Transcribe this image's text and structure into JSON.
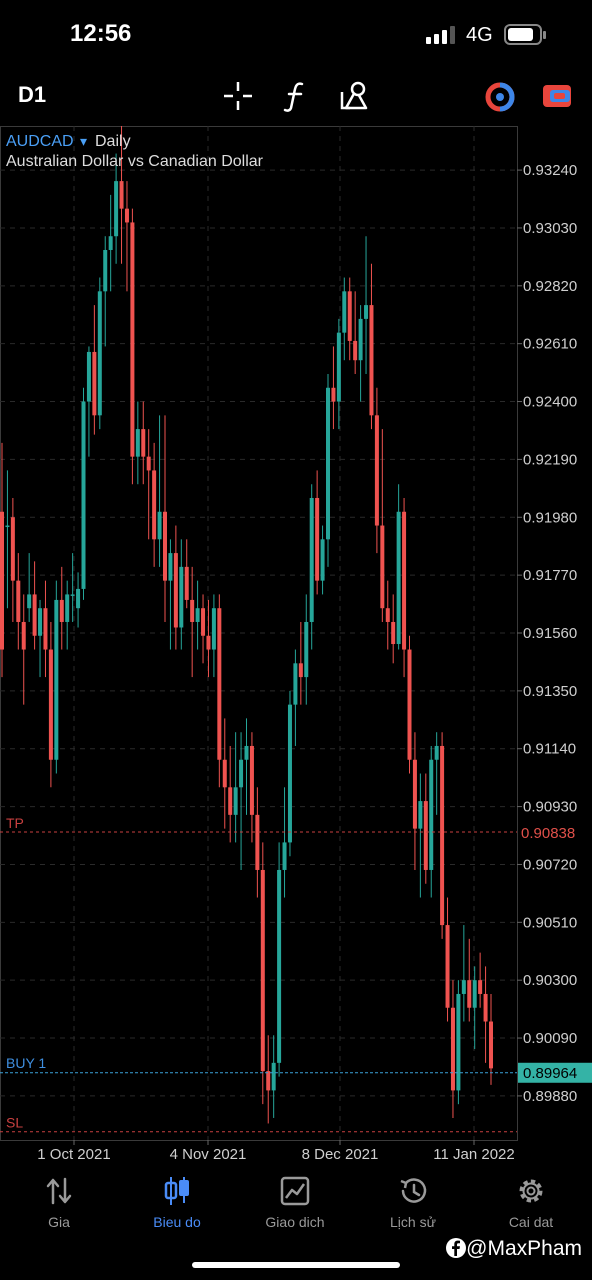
{
  "status_bar": {
    "time": "12:56",
    "network": "4G"
  },
  "toolbar": {
    "timeframe": "D1",
    "icons": [
      "crosshair-icon",
      "function-icon",
      "objects-icon",
      "trade-toggle-icon",
      "window-icon"
    ]
  },
  "chart": {
    "symbol": "AUDCAD",
    "dropdown_glyph": "▾",
    "period": "Daily",
    "description": "Australian Dollar vs Canadian Dollar",
    "price_axis": [
      "0.93240",
      "0.93030",
      "0.92820",
      "0.92610",
      "0.92400",
      "0.92190",
      "0.91980",
      "0.91770",
      "0.91560",
      "0.91350",
      "0.91140",
      "0.90930",
      "0.90720",
      "0.90510",
      "0.90300",
      "0.90090",
      "0.89880"
    ],
    "date_axis": [
      "1 Oct 2021",
      "4 Nov 2021",
      "8 Dec 2021",
      "11 Jan 2022"
    ],
    "tp": {
      "label": "TP",
      "price": "0.90838"
    },
    "buy": {
      "label": "BUY 1",
      "price": "0.89964"
    },
    "sl": {
      "label": "SL"
    },
    "colors": {
      "up": "#26a69a",
      "down": "#ef5350",
      "grid": "#2a2a2a",
      "buy": "#3aa0d8",
      "tp": "#c84040"
    }
  },
  "chart_data": {
    "type": "candlestick",
    "symbol": "AUDCAD",
    "period": "Daily",
    "ylim": [
      0.8972,
      0.934
    ],
    "candles": [
      [
        0.92,
        0.9225,
        0.914,
        0.915
      ],
      [
        0.9195,
        0.9215,
        0.9165,
        0.9195
      ],
      [
        0.9198,
        0.9205,
        0.916,
        0.9175
      ],
      [
        0.9175,
        0.9185,
        0.915,
        0.916
      ],
      [
        0.916,
        0.917,
        0.913,
        0.915
      ],
      [
        0.9165,
        0.9185,
        0.916,
        0.917
      ],
      [
        0.917,
        0.9182,
        0.915,
        0.9155
      ],
      [
        0.9155,
        0.9168,
        0.914,
        0.9165
      ],
      [
        0.9165,
        0.9175,
        0.914,
        0.915
      ],
      [
        0.915,
        0.916,
        0.91,
        0.911
      ],
      [
        0.911,
        0.9175,
        0.9105,
        0.9168
      ],
      [
        0.9168,
        0.918,
        0.915,
        0.916
      ],
      [
        0.916,
        0.9175,
        0.915,
        0.917
      ],
      [
        0.917,
        0.9185,
        0.916,
        0.917
      ],
      [
        0.9165,
        0.9178,
        0.9158,
        0.9172
      ],
      [
        0.9172,
        0.9245,
        0.9168,
        0.924
      ],
      [
        0.924,
        0.926,
        0.922,
        0.9258
      ],
      [
        0.9258,
        0.9275,
        0.9228,
        0.9235
      ],
      [
        0.9235,
        0.9285,
        0.923,
        0.928
      ],
      [
        0.928,
        0.93,
        0.926,
        0.9295
      ],
      [
        0.9295,
        0.9315,
        0.928,
        0.93
      ],
      [
        0.93,
        0.933,
        0.929,
        0.932
      ],
      [
        0.932,
        0.934,
        0.929,
        0.931
      ],
      [
        0.931,
        0.932,
        0.928,
        0.9305
      ],
      [
        0.9305,
        0.931,
        0.921,
        0.922
      ],
      [
        0.922,
        0.924,
        0.921,
        0.923
      ],
      [
        0.923,
        0.924,
        0.921,
        0.922
      ],
      [
        0.922,
        0.923,
        0.919,
        0.9215
      ],
      [
        0.9215,
        0.9225,
        0.918,
        0.919
      ],
      [
        0.919,
        0.9235,
        0.918,
        0.92
      ],
      [
        0.92,
        0.9235,
        0.916,
        0.9175
      ],
      [
        0.9175,
        0.919,
        0.915,
        0.9185
      ],
      [
        0.9185,
        0.9195,
        0.915,
        0.9158
      ],
      [
        0.9158,
        0.919,
        0.915,
        0.918
      ],
      [
        0.918,
        0.919,
        0.9165,
        0.9168
      ],
      [
        0.9168,
        0.918,
        0.914,
        0.916
      ],
      [
        0.916,
        0.9175,
        0.915,
        0.9165
      ],
      [
        0.9165,
        0.917,
        0.9145,
        0.9155
      ],
      [
        0.9155,
        0.9168,
        0.914,
        0.915
      ],
      [
        0.915,
        0.917,
        0.914,
        0.9165
      ],
      [
        0.9165,
        0.917,
        0.91,
        0.911
      ],
      [
        0.911,
        0.9125,
        0.9085,
        0.91
      ],
      [
        0.91,
        0.9115,
        0.908,
        0.909
      ],
      [
        0.909,
        0.912,
        0.908,
        0.91
      ],
      [
        0.91,
        0.912,
        0.907,
        0.911
      ],
      [
        0.911,
        0.9125,
        0.909,
        0.9115
      ],
      [
        0.9115,
        0.912,
        0.908,
        0.909
      ],
      [
        0.909,
        0.91,
        0.906,
        0.907
      ],
      [
        0.907,
        0.908,
        0.8985,
        0.8997
      ],
      [
        0.8997,
        0.901,
        0.8978,
        0.899
      ],
      [
        0.899,
        0.901,
        0.898,
        0.9
      ],
      [
        0.9,
        0.908,
        0.8995,
        0.907
      ],
      [
        0.907,
        0.91,
        0.906,
        0.908
      ],
      [
        0.908,
        0.9135,
        0.9075,
        0.913
      ],
      [
        0.913,
        0.915,
        0.9115,
        0.9145
      ],
      [
        0.9145,
        0.916,
        0.913,
        0.914
      ],
      [
        0.914,
        0.917,
        0.913,
        0.916
      ],
      [
        0.916,
        0.921,
        0.915,
        0.9205
      ],
      [
        0.9205,
        0.9215,
        0.917,
        0.9175
      ],
      [
        0.9175,
        0.9195,
        0.917,
        0.919
      ],
      [
        0.919,
        0.925,
        0.918,
        0.9245
      ],
      [
        0.9245,
        0.926,
        0.923,
        0.924
      ],
      [
        0.924,
        0.927,
        0.923,
        0.9265
      ],
      [
        0.9265,
        0.9285,
        0.9255,
        0.928
      ],
      [
        0.928,
        0.9285,
        0.9255,
        0.9262
      ],
      [
        0.9262,
        0.928,
        0.925,
        0.9255
      ],
      [
        0.9255,
        0.9275,
        0.924,
        0.927
      ],
      [
        0.927,
        0.93,
        0.925,
        0.9275
      ],
      [
        0.9275,
        0.929,
        0.923,
        0.9235
      ],
      [
        0.9235,
        0.9245,
        0.9185,
        0.9195
      ],
      [
        0.9195,
        0.923,
        0.916,
        0.9165
      ],
      [
        0.9165,
        0.9175,
        0.915,
        0.916
      ],
      [
        0.916,
        0.917,
        0.9145,
        0.9152
      ],
      [
        0.9152,
        0.921,
        0.915,
        0.92
      ],
      [
        0.92,
        0.9205,
        0.914,
        0.915
      ],
      [
        0.915,
        0.9155,
        0.9105,
        0.911
      ],
      [
        0.911,
        0.912,
        0.907,
        0.9085
      ],
      [
        0.9085,
        0.9105,
        0.906,
        0.9095
      ],
      [
        0.9095,
        0.9105,
        0.9065,
        0.907
      ],
      [
        0.907,
        0.9115,
        0.906,
        0.911
      ],
      [
        0.911,
        0.912,
        0.909,
        0.9115
      ],
      [
        0.9115,
        0.912,
        0.9045,
        0.905
      ],
      [
        0.905,
        0.906,
        0.9015,
        0.902
      ],
      [
        0.902,
        0.903,
        0.898,
        0.899
      ],
      [
        0.899,
        0.903,
        0.8985,
        0.9025
      ],
      [
        0.9025,
        0.905,
        0.9015,
        0.903
      ],
      [
        0.903,
        0.9045,
        0.9015,
        0.902
      ],
      [
        0.902,
        0.9035,
        0.9005,
        0.903
      ],
      [
        0.903,
        0.904,
        0.902,
        0.9025
      ],
      [
        0.9025,
        0.9035,
        0.9,
        0.9015
      ],
      [
        0.9015,
        0.9025,
        0.8992,
        0.8998
      ]
    ],
    "levels": [
      {
        "label": "TP",
        "value": 0.90838
      },
      {
        "label": "BUY 1",
        "value": 0.89964
      },
      {
        "label": "SL",
        "value": 0.8975
      }
    ]
  },
  "tabbar": {
    "tabs": [
      {
        "label": "Gia",
        "icon": "quotes-arrows-icon",
        "active": false
      },
      {
        "label": "Bieu do",
        "icon": "candlestick-icon",
        "active": true
      },
      {
        "label": "Giao dich",
        "icon": "trade-chart-icon",
        "active": false
      },
      {
        "label": "Lịch sử",
        "icon": "history-icon",
        "active": false
      },
      {
        "label": "Cai dat",
        "icon": "settings-gear-icon",
        "active": false
      }
    ]
  },
  "watermark": "@MaxPham"
}
